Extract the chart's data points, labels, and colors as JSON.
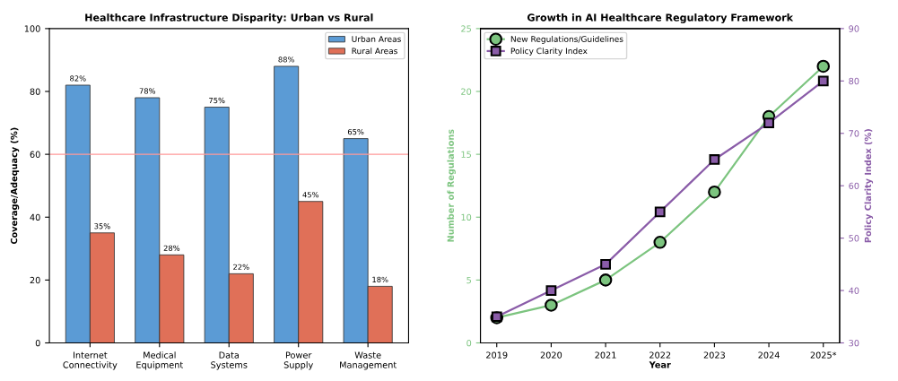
{
  "chart_data": [
    {
      "type": "bar",
      "title": "Healthcare Infrastructure Disparity: Urban vs Rural",
      "ylabel": "Coverage/Adequacy (%)",
      "categories": [
        "Internet\nConnectivity",
        "Medical\nEquipment",
        "Data\nSystems",
        "Power\nSupply",
        "Waste\nManagement"
      ],
      "series": [
        {
          "name": "Urban Areas",
          "color": "#5b9bd5",
          "values": [
            82,
            78,
            75,
            88,
            65
          ],
          "value_labels": [
            "82%",
            "78%",
            "75%",
            "88%",
            "65%"
          ]
        },
        {
          "name": "Rural Areas",
          "color": "#e07058",
          "values": [
            35,
            28,
            22,
            45,
            18
          ],
          "value_labels": [
            "35%",
            "28%",
            "22%",
            "45%",
            "18%"
          ]
        }
      ],
      "ylim": [
        0,
        100
      ],
      "yticks": [
        0,
        20,
        40,
        60,
        80,
        100
      ],
      "ref_lines": [
        {
          "axis": "y",
          "value": 60,
          "color": "#ff9999"
        }
      ],
      "legend": "top right",
      "grid": false
    },
    {
      "type": "line",
      "title": "Growth in AI Healthcare Regulatory Framework",
      "xlabel": "Year",
      "ylabel": "Number of Regulations",
      "y2label": "Policy Clarity Index (%)",
      "categories": [
        "2019",
        "2020",
        "2021",
        "2022",
        "2023",
        "2024",
        "2025*"
      ],
      "series": [
        {
          "name": "New Regulations/Guidelines",
          "color": "#7cc47f",
          "values": [
            2,
            3,
            5,
            8,
            12,
            18,
            22
          ],
          "marker": "circle"
        },
        {
          "name": "Policy Clarity Index",
          "color": "#8a5ca8",
          "values": [
            35,
            40,
            45,
            55,
            65,
            72,
            80
          ],
          "marker": "square",
          "axis": "y2"
        }
      ],
      "ylim": [
        0,
        25
      ],
      "yticks": [
        0,
        5,
        10,
        15,
        20,
        25
      ],
      "y2lim": [
        30,
        90
      ],
      "y2ticks": [
        30,
        40,
        50,
        60,
        70,
        80,
        90
      ],
      "legend": "top left",
      "line_style": "solid",
      "grid": false
    }
  ]
}
